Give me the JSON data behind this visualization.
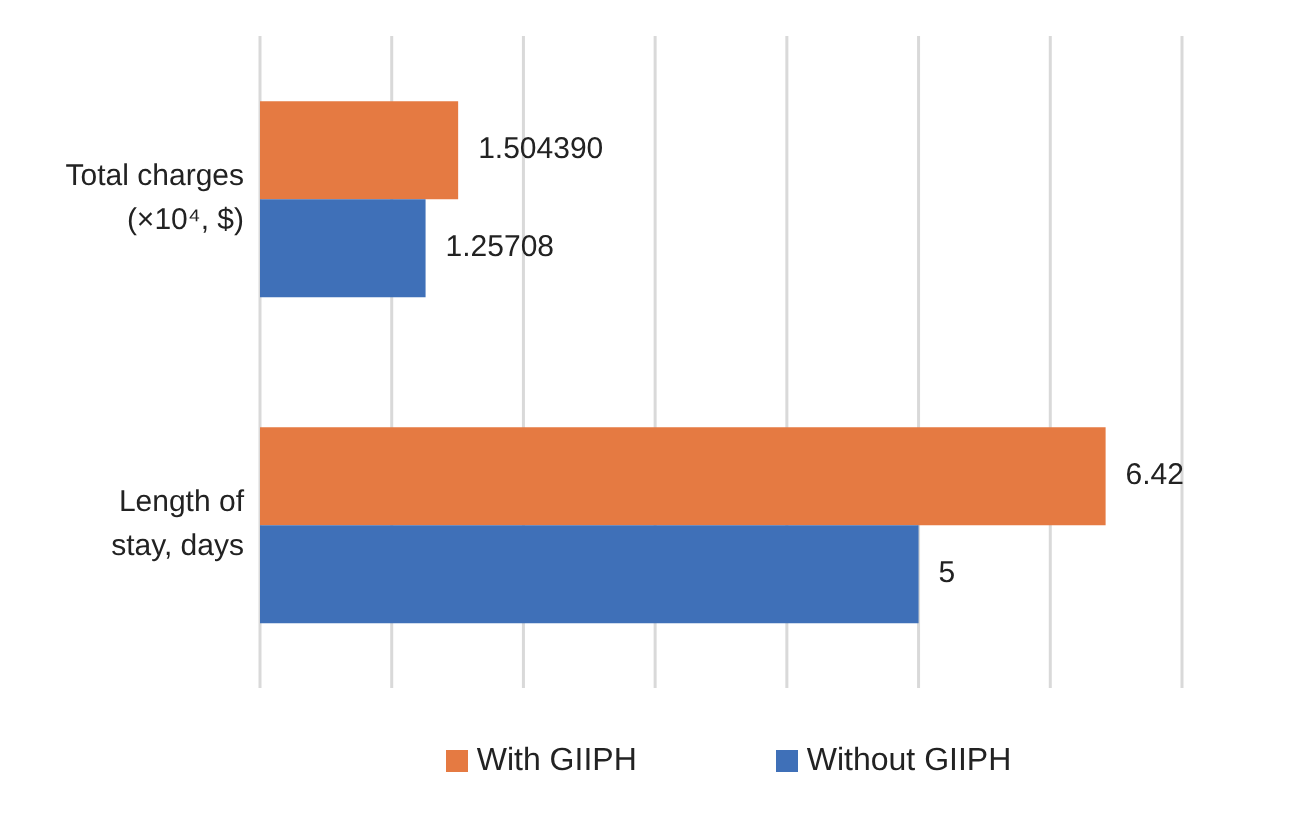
{
  "chart_data": {
    "type": "bar",
    "orientation": "horizontal",
    "categories": [
      "Total charges (×10⁴, $)",
      "Length of stay, days"
    ],
    "series": [
      {
        "name": "With GIIPH",
        "color": "#e57a42",
        "values": [
          1.50439,
          6.42
        ],
        "value_labels": [
          "1.504390",
          "6.42"
        ]
      },
      {
        "name": "Without GIIPH",
        "color": "#3f70b8",
        "values": [
          1.25708,
          5
        ],
        "value_labels": [
          "1.25708",
          "5"
        ]
      }
    ],
    "xlim": [
      0,
      7
    ],
    "xticks": [
      {
        "value": 0,
        "label": null
      },
      {
        "value": 1,
        "label": null
      },
      {
        "value": 2,
        "label": null
      },
      {
        "value": 3,
        "label": null
      },
      {
        "value": 4,
        "label": null
      },
      {
        "value": 5,
        "label": null
      },
      {
        "value": 6,
        "label": null
      },
      {
        "value": 7,
        "label": null
      }
    ],
    "tick_labels": "y",
    "grid": "x",
    "legend": "bottom"
  }
}
